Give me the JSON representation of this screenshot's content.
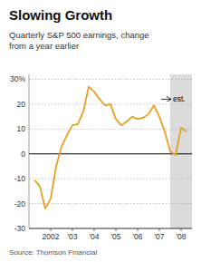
{
  "chart_data": {
    "type": "line",
    "title": "Slowing Growth",
    "subtitle": "Quarterly S&P 500 earnings, change\nfrom a year earlier",
    "source": "Source: Thomson Financial",
    "color": "#E8A020",
    "grid": true,
    "x": [
      2001.25,
      2001.5,
      2001.75,
      2002.0,
      2002.25,
      2002.5,
      2002.75,
      2003.0,
      2003.25,
      2003.5,
      2003.75,
      2004.0,
      2004.25,
      2004.5,
      2004.75,
      2005.0,
      2005.25,
      2005.5,
      2005.75,
      2006.0,
      2006.25,
      2006.5,
      2006.75,
      2007.0,
      2007.25,
      2007.5,
      2007.75,
      2008.0,
      2008.25
    ],
    "values": [
      -10.5,
      -13.0,
      -22.0,
      -18.0,
      -5.0,
      3.0,
      7.5,
      11.5,
      12.0,
      17.0,
      27.0,
      25.0,
      22.0,
      19.5,
      20.0,
      14.0,
      11.5,
      13.0,
      15.0,
      14.0,
      14.5,
      16.0,
      19.5,
      15.0,
      9.0,
      1.0,
      -0.5,
      10.5,
      9.0
    ],
    "xlim": [
      2001.0,
      2008.5
    ],
    "xticks": [
      2002,
      {
        "value": 2003,
        "label": "'03"
      },
      {
        "value": 2004,
        "label": "'04"
      },
      {
        "value": 2005,
        "label": "'05"
      },
      {
        "value": 2006,
        "label": "'06"
      },
      {
        "value": 2007,
        "label": "'07"
      },
      {
        "value": 2008,
        "label": "'08"
      }
    ],
    "ylim": [
      -30,
      32
    ],
    "yticks": [
      -30,
      -20,
      -10,
      0,
      10,
      20,
      {
        "value": 30,
        "label": "30%"
      }
    ],
    "annotations": [
      {
        "text": "est.",
        "x": 2007.5,
        "y": 22
      }
    ]
  }
}
